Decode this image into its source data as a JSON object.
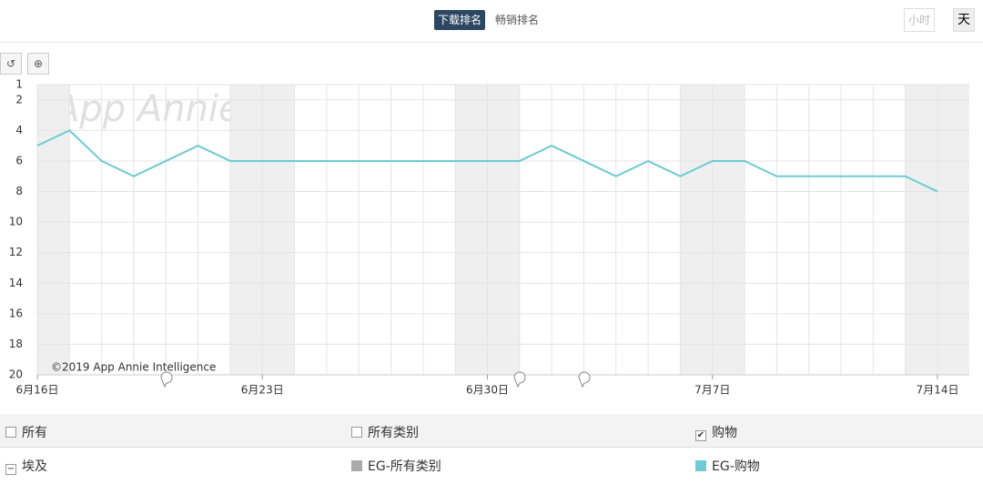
{
  "header": {
    "tabs": [
      "下载排名",
      "畅销排名"
    ],
    "granularity": [
      "小时",
      "天"
    ]
  },
  "watermark": "App Annie",
  "copyright": "©2019 App Annie Intelligence",
  "chart_data": {
    "type": "line",
    "categories": [
      "6月16日",
      null,
      null,
      null,
      null,
      null,
      null,
      "6月23日",
      null,
      null,
      null,
      null,
      null,
      null,
      "6月30日",
      null,
      null,
      null,
      null,
      null,
      null,
      "7月7日",
      null,
      null,
      null,
      null,
      null,
      null,
      "7月14日"
    ],
    "series": [
      {
        "name": "EG-购物",
        "color": "#6ccbd3",
        "values": [
          5,
          4,
          6,
          7,
          6,
          5,
          6,
          6,
          6,
          6,
          6,
          6,
          6,
          6,
          6,
          6,
          5,
          6,
          7,
          6,
          7,
          6,
          6,
          7,
          7,
          7,
          7,
          7,
          8
        ]
      }
    ],
    "ylim": [
      1,
      20
    ],
    "reversed": true,
    "yticks": [
      1,
      2,
      4,
      6,
      8,
      10,
      12,
      14,
      16,
      18,
      20
    ],
    "grid": true
  },
  "filters": {
    "row1": [
      "所有",
      "所有类别",
      "购物"
    ],
    "row2": [
      "埃及",
      "EG-所有类别"
    ],
    "gray_color": "#aaaaaa"
  }
}
